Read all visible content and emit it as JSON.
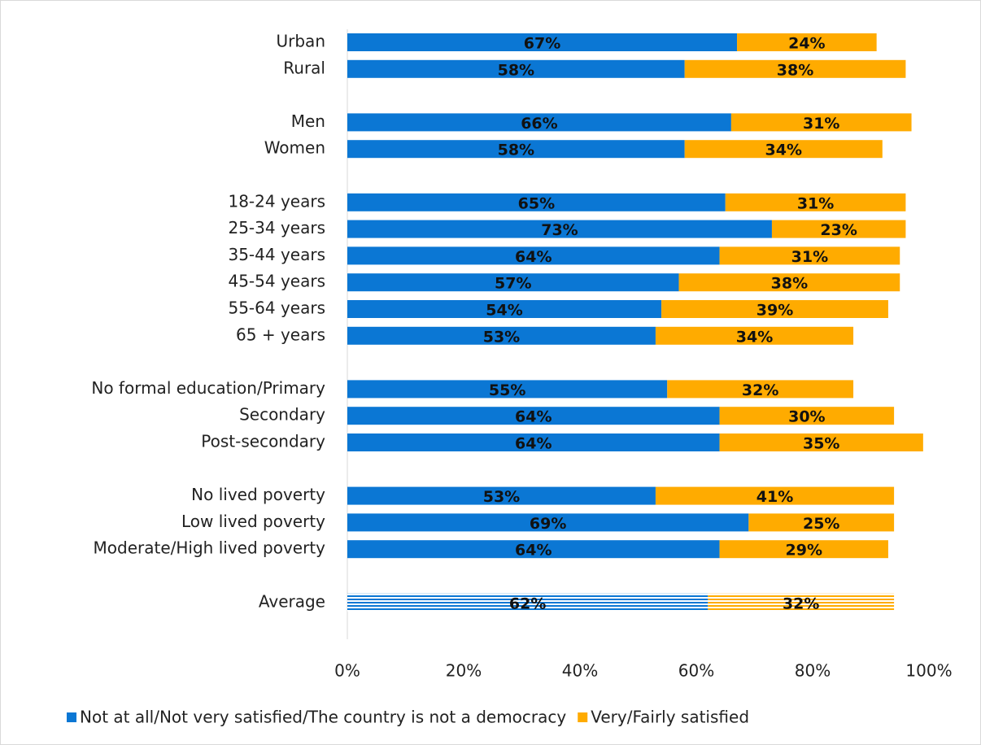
{
  "chart_data": {
    "type": "stacked-bar-horizontal",
    "categories": [
      "Urban",
      "Rural",
      null,
      "Men",
      "Women",
      null,
      "18-24 years",
      "25-34 years",
      "35-44 years",
      "45-54 years",
      "55-64 years",
      "65 + years",
      null,
      "No formal education/Primary",
      "Secondary",
      "Post-secondary",
      null,
      "No lived poverty",
      "Low lived poverty",
      "Moderate/High lived poverty",
      null,
      "Average"
    ],
    "series": [
      {
        "name": "Not at all/Not very satisfied/The country is not a democracy",
        "color": "#0b77d4",
        "values": [
          67,
          58,
          null,
          66,
          58,
          null,
          65,
          73,
          64,
          57,
          54,
          53,
          null,
          55,
          64,
          64,
          null,
          53,
          69,
          64,
          null,
          62
        ],
        "value_labels": [
          "67%",
          "58%",
          null,
          "66%",
          "58%",
          null,
          "65%",
          "73%",
          "64%",
          "57%",
          "54%",
          "53%",
          null,
          "55%",
          "64%",
          "64%",
          null,
          "53%",
          "69%",
          "64%",
          null,
          "62%"
        ]
      },
      {
        "name": "Very/Fairly satisfied",
        "color": "#ffab00",
        "values": [
          24,
          38,
          null,
          31,
          34,
          null,
          31,
          23,
          31,
          38,
          39,
          34,
          null,
          32,
          30,
          35,
          null,
          41,
          25,
          29,
          null,
          32
        ],
        "value_labels": [
          "24%",
          "38%",
          null,
          "31%",
          "34%",
          null,
          "31%",
          "23%",
          "31%",
          "38%",
          "39%",
          "34%",
          null,
          "32%",
          "30%",
          "35%",
          null,
          "41%",
          "25%",
          "29%",
          null,
          "32%"
        ]
      }
    ],
    "striped_categories": [
      "Average"
    ],
    "xlim": [
      0,
      100
    ],
    "xticks": [
      {
        "value": 0,
        "label": "0%"
      },
      {
        "value": 20,
        "label": "20%"
      },
      {
        "value": 40,
        "label": "40%"
      },
      {
        "value": 60,
        "label": "60%"
      },
      {
        "value": 80,
        "label": "80%"
      },
      {
        "value": 100,
        "label": "100%"
      }
    ],
    "legend": "bottom"
  }
}
